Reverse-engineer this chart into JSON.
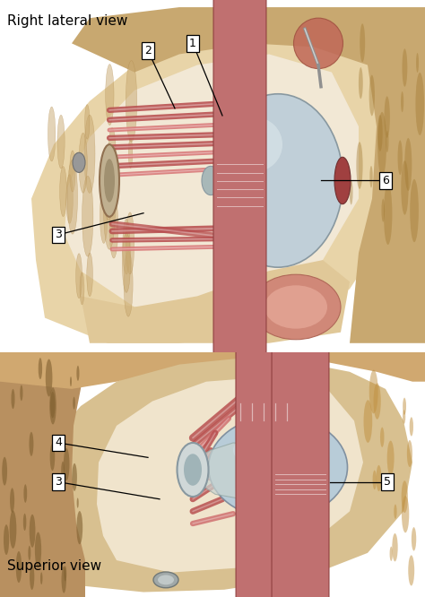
{
  "title_top": "Right lateral view",
  "title_bottom": "Superior view",
  "background_color": "#ffffff",
  "fig_width": 4.74,
  "fig_height": 6.66,
  "dpi": 100,
  "top_panel": {
    "bg_outer": "#e8d4a8",
    "bg_inner": "#f2e8d5",
    "bone_tan": "#c8a870",
    "bone_light": "#e0c898",
    "muscle_red": "#b85050",
    "muscle_light": "#d87878",
    "eye_blue": "#c0cfd8",
    "eye_sheen": "#d8e4e8",
    "iris_red": "#a04040",
    "tendon_gray": "#a8b8b8",
    "nerve_gray": "#8898a0"
  },
  "bot_panel": {
    "bg_outer": "#d8c090",
    "bg_inner": "#f0e4cc",
    "bone_tan": "#c0985a",
    "bone_wall_left": "#b89060",
    "muscle_red": "#b85050",
    "eye_blue": "#b8ccd8",
    "tendon_white": "#d0d8d8"
  },
  "label_fontsize": 9,
  "title_fontsize": 11
}
